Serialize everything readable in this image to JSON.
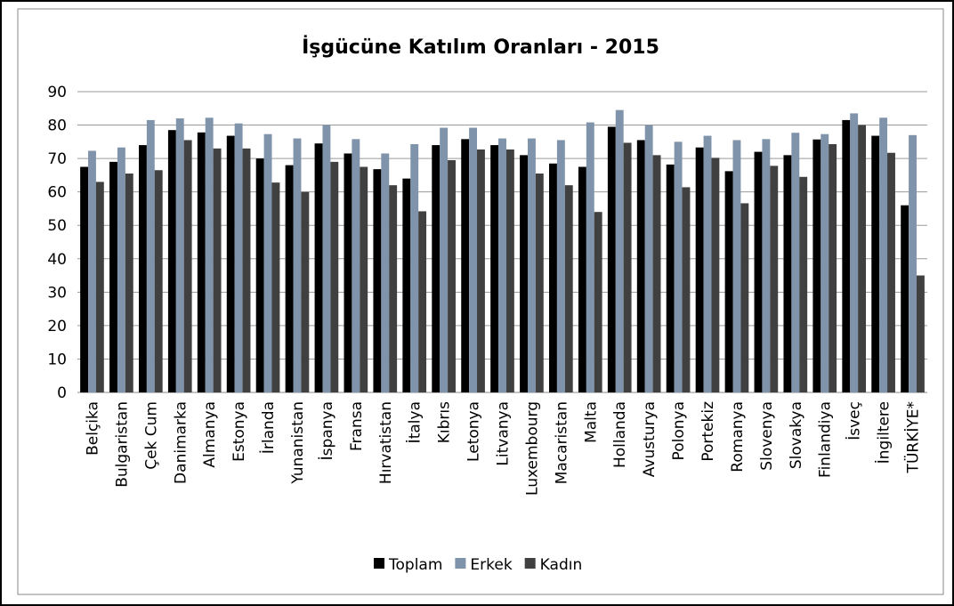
{
  "chart_data": {
    "type": "bar",
    "title": "İşgücüne Katılım Oranları - 2015",
    "categories": [
      "Belçika",
      "Bulgaristan",
      "Çek Cum",
      "Danimarka",
      "Almanya",
      "Estonya",
      "İrlanda",
      "Yunanistan",
      "İspanya",
      "Fransa",
      "Hırvatistan",
      "İtalya",
      "Kıbrıs",
      "Letonya",
      "Litvanya",
      "Luxembourg",
      "Macaristan",
      "Malta",
      "Hollanda",
      "Avusturya",
      "Polonya",
      "Portekiz",
      "Romanya",
      "Slovenya",
      "Slovakya",
      "Finlandiya",
      "İsveç",
      "İngiltere",
      "TÜRKİYE*"
    ],
    "series": [
      {
        "name": "Toplam",
        "color": "#000000",
        "values": [
          67.5,
          69,
          74,
          78.5,
          77.8,
          76.8,
          70,
          68,
          74.5,
          71.5,
          66.8,
          64,
          74,
          75.8,
          74,
          71,
          68.5,
          67.5,
          79.5,
          75.5,
          68.2,
          73.3,
          66.2,
          72,
          71,
          75.7,
          81.5,
          76.8,
          56
        ]
      },
      {
        "name": "Erkek",
        "color": "#7f93aa",
        "values": [
          72.3,
          73.3,
          81.5,
          82,
          82.2,
          80.5,
          77.3,
          76,
          80,
          75.8,
          71.5,
          74.3,
          79.2,
          79.2,
          76,
          76,
          75.5,
          80.8,
          84.5,
          80,
          75,
          76.8,
          75.5,
          75.8,
          77.7,
          77.3,
          83.5,
          82.2,
          77
        ]
      },
      {
        "name": "Kadın",
        "color": "#404040",
        "values": [
          63,
          65.5,
          66.5,
          75.5,
          73,
          73,
          62.8,
          60,
          69,
          67.5,
          62,
          54.2,
          69.5,
          72.7,
          72.7,
          65.5,
          62,
          54,
          74.7,
          71,
          61.4,
          70.2,
          56.6,
          67.8,
          64.5,
          74.3,
          80,
          71.7,
          35
        ]
      }
    ],
    "ylim": [
      0,
      90
    ],
    "yticks": [
      0,
      10,
      20,
      30,
      40,
      50,
      60,
      70,
      80,
      90
    ],
    "grid": true,
    "legend": "bottom"
  }
}
